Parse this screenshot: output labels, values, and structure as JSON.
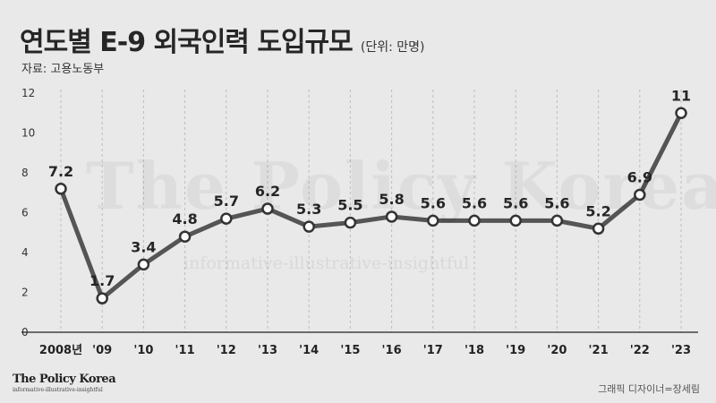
{
  "header": {
    "title": "연도별 E-9 외국인력 도입규모",
    "unit": "(단위: 만명)",
    "source": "자료: 고용노동부"
  },
  "watermark": {
    "main": "The Policy Korea",
    "sub": "informative-illustrative-insightful"
  },
  "brand": {
    "name": "The Policy Korea",
    "tagline": "informative-illustrative-insightful"
  },
  "credit": "그래픽 디자이너=장세림",
  "colors": {
    "background": "#e9e9e9",
    "line": "#555555",
    "marker_fill": "#ffffff",
    "text": "#262626"
  },
  "chart_data": {
    "type": "line",
    "categories": [
      "2008년",
      "'09",
      "'10",
      "'11",
      "'12",
      "'13",
      "'14",
      "'15",
      "'16",
      "'17",
      "'18",
      "'19",
      "'20",
      "'21",
      "'22",
      "'23"
    ],
    "values": [
      7.2,
      1.7,
      3.4,
      4.8,
      5.7,
      6.2,
      5.3,
      5.5,
      5.8,
      5.6,
      5.6,
      5.6,
      5.6,
      5.2,
      6.9,
      11
    ],
    "value_labels": [
      "7.2",
      "1.7",
      "3.4",
      "4.8",
      "5.7",
      "6.2",
      "5.3",
      "5.5",
      "5.8",
      "5.6",
      "5.6",
      "5.6",
      "5.6",
      "5.2",
      "6.9",
      "11"
    ],
    "yticks": [
      0,
      2,
      4,
      6,
      8,
      10,
      12
    ],
    "ylim": [
      0,
      12
    ],
    "grid": "vertical dashed",
    "legend": "none"
  }
}
